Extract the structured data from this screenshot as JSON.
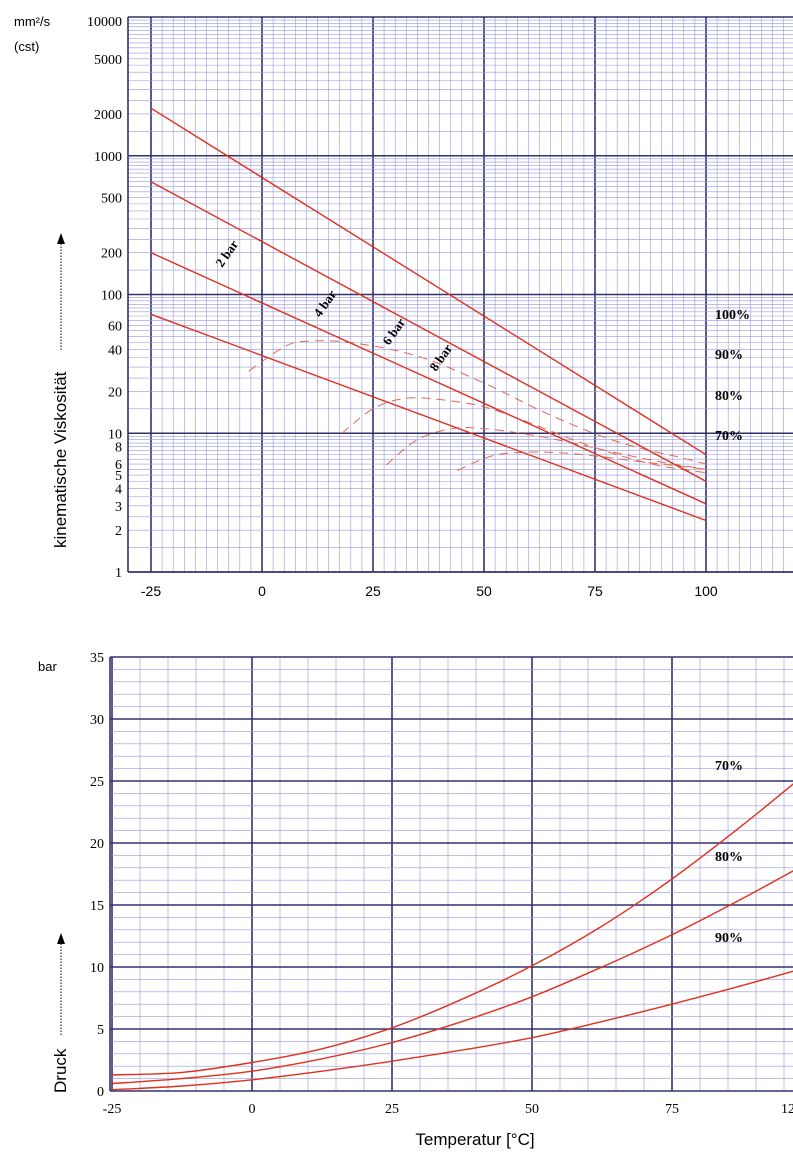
{
  "chart_data": [
    {
      "type": "line",
      "ylabel": "kinematische Viskosität",
      "yunit_top": "mm²/s",
      "yunit_bottom": "(cst)",
      "y_scale": "log",
      "ylim": [
        1,
        10000
      ],
      "xlim": [
        -25,
        120
      ],
      "x_ticks": [
        "-25",
        "0",
        "25",
        "50",
        "75",
        "100"
      ],
      "y_ticks": [
        "10000",
        "5000",
        "2000",
        "1000",
        "500",
        "200",
        "100",
        "60",
        "40",
        "20",
        "10",
        "8",
        "6",
        "5",
        "4",
        "3",
        "2",
        "1"
      ],
      "grid": true,
      "series": [
        {
          "name": "100%",
          "x": [
            -25,
            100
          ],
          "y": [
            2200,
            7
          ]
        },
        {
          "name": "90%",
          "x": [
            -25,
            100
          ],
          "y": [
            650,
            4.5
          ]
        },
        {
          "name": "80%",
          "x": [
            -25,
            100
          ],
          "y": [
            200,
            3.1
          ]
        },
        {
          "name": "70%",
          "x": [
            -25,
            100
          ],
          "y": [
            72,
            2.35
          ]
        }
      ],
      "pressure_curves": [
        {
          "name": "2 bar",
          "x": [
            -3,
            5,
            10,
            20,
            35,
            50,
            65,
            80,
            95,
            100
          ],
          "y": [
            28,
            42,
            46,
            45,
            36,
            23,
            13.5,
            8.7,
            6.6,
            6.0
          ]
        },
        {
          "name": "4 bar",
          "x": [
            18,
            25,
            32,
            40,
            50,
            60,
            70,
            80,
            90,
            100
          ],
          "y": [
            10,
            15,
            17.8,
            17.5,
            15.5,
            12,
            9,
            7,
            5.8,
            5.2
          ]
        },
        {
          "name": "6 bar",
          "x": [
            28,
            35,
            43,
            50,
            60,
            70,
            80,
            90,
            100
          ],
          "y": [
            5.9,
            9,
            10.8,
            10.8,
            9.8,
            8.5,
            7.2,
            6.2,
            5.5
          ]
        },
        {
          "name": "8 bar",
          "x": [
            44,
            52,
            60,
            68,
            76,
            84,
            92,
            100
          ],
          "y": [
            5.4,
            6.9,
            7.3,
            7.2,
            6.8,
            6.3,
            5.9,
            5.5
          ]
        }
      ]
    },
    {
      "type": "line",
      "xlabel": "Temperatur [°C]",
      "ylabel": "Druck",
      "yunit": "bar",
      "xlim": [
        -25,
        120
      ],
      "ylim": [
        0,
        35
      ],
      "x_ticks": [
        "-25",
        "0",
        "25",
        "50",
        "75",
        "100",
        "12"
      ],
      "y_ticks": [
        "0",
        "5",
        "10",
        "15",
        "20",
        "25",
        "30",
        "35"
      ],
      "grid": true,
      "series": [
        {
          "name": "70%",
          "x": [
            -25,
            -12.5,
            0,
            12.5,
            25,
            37.5,
            50,
            62.5,
            75,
            87.5,
            100
          ],
          "y": [
            1.3,
            1.5,
            2.3,
            3.4,
            5.1,
            7.4,
            10.1,
            13.3,
            17.1,
            21.4,
            26
          ]
        },
        {
          "name": "80%",
          "x": [
            -25,
            -12.5,
            0,
            12.5,
            25,
            37.5,
            50,
            62.5,
            75,
            87.5,
            100
          ],
          "y": [
            0.6,
            1.0,
            1.6,
            2.6,
            3.9,
            5.6,
            7.6,
            10.0,
            12.6,
            15.5,
            18.6
          ]
        },
        {
          "name": "90%",
          "x": [
            -25,
            -12.5,
            0,
            12.5,
            25,
            37.5,
            50,
            62.5,
            75,
            87.5,
            100
          ],
          "y": [
            0.1,
            0.4,
            0.9,
            1.6,
            2.4,
            3.3,
            4.3,
            5.6,
            7.0,
            8.5,
            10.1
          ]
        }
      ]
    }
  ]
}
